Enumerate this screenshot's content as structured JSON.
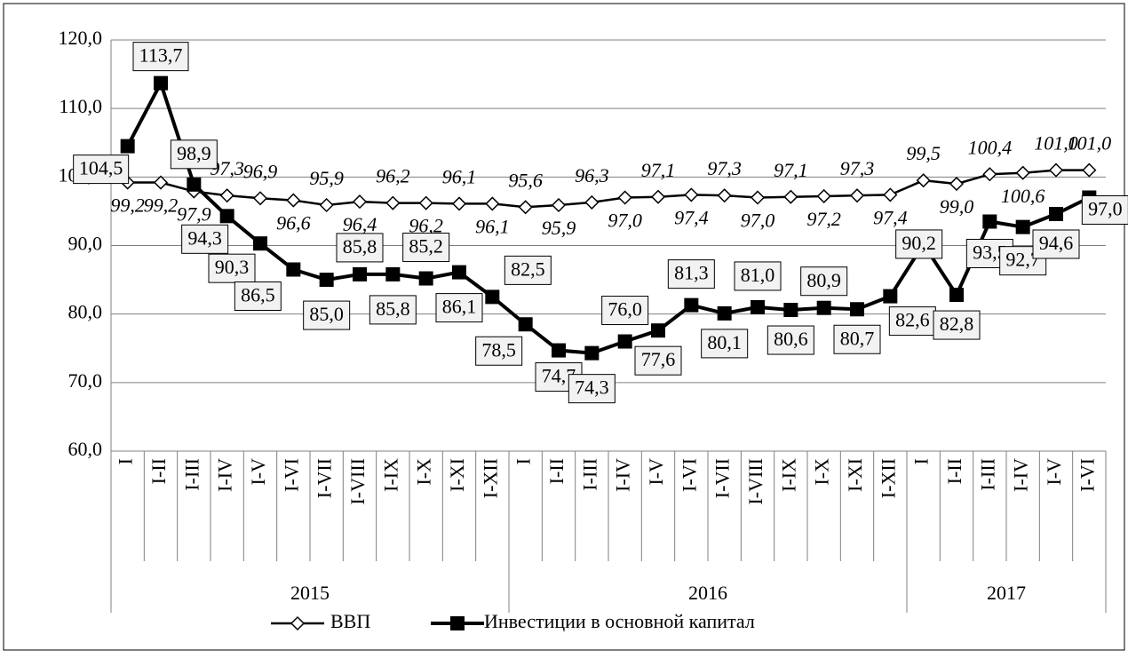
{
  "chart_data": {
    "type": "line",
    "categories": [
      "I",
      "I-II",
      "I-III",
      "I-IV",
      "I-V",
      "I-VI",
      "I-VII",
      "I-VIII",
      "I-IX",
      "I-X",
      "I-XI",
      "I-XII",
      "I",
      "I-II",
      "I-III",
      "I-IV",
      "I-V",
      "I-VI",
      "I-VII",
      "I-VIII",
      "I-IX",
      "I-X",
      "I-XI",
      "I-XII",
      "I",
      "I-II",
      "I-III",
      "I-IV",
      "I-V",
      "I-VI"
    ],
    "groups": [
      "2015",
      "2016",
      "2017"
    ],
    "series": [
      {
        "name": "ВВП",
        "color": "#000000",
        "marker": "diamond",
        "values": [
          99.2,
          99.2,
          97.9,
          97.3,
          96.9,
          96.6,
          95.9,
          96.4,
          96.2,
          96.2,
          96.1,
          96.1,
          95.6,
          95.9,
          96.3,
          97.0,
          97.1,
          97.4,
          97.3,
          97.0,
          97.1,
          97.2,
          97.3,
          97.4,
          99.5,
          99.0,
          100.4,
          100.6,
          101.0,
          101.0
        ],
        "value_labels": [
          "99,2",
          "99,2",
          "97,9",
          "97,3",
          "96,9",
          "96,6",
          "95,9",
          "96,4",
          "96,2",
          "96,2",
          "96,1",
          "96,1",
          "95,6",
          "95,9",
          "96,3",
          "97,0",
          "97,1",
          "97,4",
          "97,3",
          "97,0",
          "97,1",
          "97,2",
          "97,3",
          "97,4",
          "99,5",
          "99,0",
          "100,4",
          "100,6",
          "101,0",
          "101,0"
        ]
      },
      {
        "name": "Инвестиции в основной капитал",
        "color": "#000000",
        "marker": "square",
        "values": [
          104.5,
          113.7,
          98.9,
          94.3,
          90.3,
          86.5,
          85.0,
          85.8,
          85.8,
          85.2,
          86.1,
          82.5,
          78.5,
          74.7,
          74.3,
          76.0,
          77.6,
          81.3,
          80.1,
          81.0,
          80.6,
          80.9,
          80.7,
          82.6,
          90.2,
          82.8,
          93.5,
          92.7,
          94.6,
          97.0
        ],
        "value_labels": [
          "104,5",
          "113,7",
          "98,9",
          "94,3",
          "90,3",
          "86,5",
          "85,0",
          "85,8",
          "85,8",
          "85,2",
          "86,1",
          "82,5",
          "78,5",
          "74,7",
          "74,3",
          "76,0",
          "77,6",
          "81,3",
          "80,1",
          "81,0",
          "80,6",
          "80,9",
          "80,7",
          "82,6",
          "90,2",
          "82,8",
          "93,5",
          "92,7",
          "94,6",
          "97,0"
        ]
      }
    ],
    "ylim": [
      60,
      120
    ],
    "yticks": [
      {
        "value": 60,
        "label": "60,0"
      },
      {
        "value": 70,
        "label": "70,0"
      },
      {
        "value": 80,
        "label": "80,0"
      },
      {
        "value": 90,
        "label": "90,0"
      },
      {
        "value": 100,
        "label": "100,0"
      },
      {
        "value": 110,
        "label": "110,0"
      },
      {
        "value": 120,
        "label": "120,0"
      }
    ],
    "grid": true,
    "legend": "bottom"
  }
}
